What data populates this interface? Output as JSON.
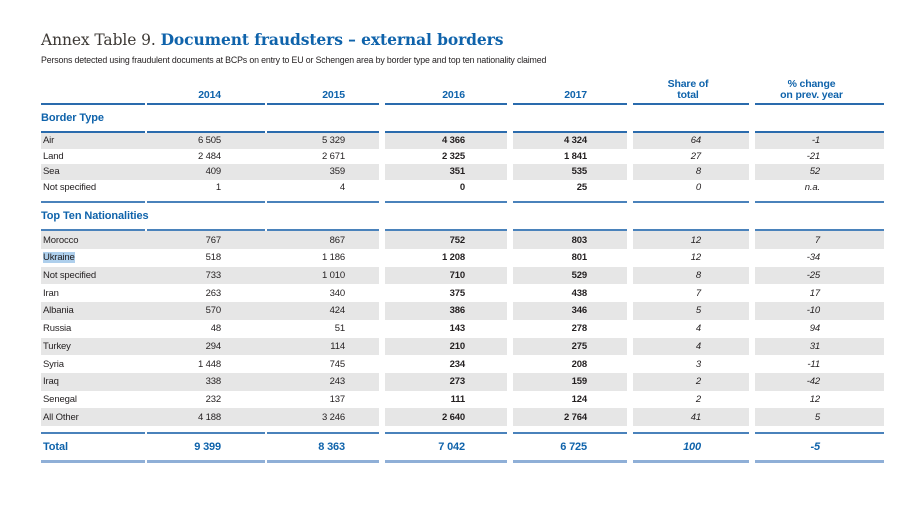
{
  "colors": {
    "blue": "#0f63ab",
    "rule-dark": "#2a6bad",
    "rule-mid": "#4a82bb",
    "rule-light": "#8fafd7",
    "row-gray": "#e6e6e6",
    "selection": "#aecfec",
    "ink": "#231f20"
  },
  "header": {
    "title_prefix": "Annex Table 9.",
    "title": "Document fraudsters – external borders",
    "subtitle": "Persons detected using fraudulent documents at BCPs on entry to EU or Schengen area by border type and top ten nationality claimed"
  },
  "table": {
    "col_headers": {
      "y2014": "2014",
      "y2015": "2015",
      "y2016": "2016",
      "y2017": "2017",
      "share_l1": "Share of",
      "share_l2": "total",
      "change_l1": "% change",
      "change_l2": "on prev. year"
    },
    "sections": [
      {
        "heading": "Border Type",
        "rows": [
          {
            "label": "Air",
            "v2014": "6 505",
            "v2015": "5 329",
            "v2016": "4 366",
            "v2017": "4 324",
            "share": "64",
            "change": "-1"
          },
          {
            "label": "Land",
            "v2014": "2 484",
            "v2015": "2 671",
            "v2016": "2 325",
            "v2017": "1 841",
            "share": "27",
            "change": "-21"
          },
          {
            "label": "Sea",
            "v2014": "409",
            "v2015": "359",
            "v2016": "351",
            "v2017": "535",
            "share": "8",
            "change": "52"
          },
          {
            "label": "Not specified",
            "v2014": "1",
            "v2015": "4",
            "v2016": "0",
            "v2017": "25",
            "share": "0",
            "change": "n.a."
          }
        ]
      },
      {
        "heading": "Top Ten Nationalities",
        "rows": [
          {
            "label": "Morocco",
            "v2014": "767",
            "v2015": "867",
            "v2016": "752",
            "v2017": "803",
            "share": "12",
            "change": "7"
          },
          {
            "label": "Ukraine",
            "highlighted": true,
            "v2014": "518",
            "v2015": "1 186",
            "v2016": "1 208",
            "v2017": "801",
            "share": "12",
            "change": "-34"
          },
          {
            "label": "Not specified",
            "v2014": "733",
            "v2015": "1 010",
            "v2016": "710",
            "v2017": "529",
            "share": "8",
            "change": "-25"
          },
          {
            "label": "Iran",
            "v2014": "263",
            "v2015": "340",
            "v2016": "375",
            "v2017": "438",
            "share": "7",
            "change": "17"
          },
          {
            "label": "Albania",
            "v2014": "570",
            "v2015": "424",
            "v2016": "386",
            "v2017": "346",
            "share": "5",
            "change": "-10"
          },
          {
            "label": "Russia",
            "v2014": "48",
            "v2015": "51",
            "v2016": "143",
            "v2017": "278",
            "share": "4",
            "change": "94"
          },
          {
            "label": "Turkey",
            "v2014": "294",
            "v2015": "114",
            "v2016": "210",
            "v2017": "275",
            "share": "4",
            "change": "31"
          },
          {
            "label": "Syria",
            "v2014": "1 448",
            "v2015": "745",
            "v2016": "234",
            "v2017": "208",
            "share": "3",
            "change": "-11"
          },
          {
            "label": "Iraq",
            "v2014": "338",
            "v2015": "243",
            "v2016": "273",
            "v2017": "159",
            "share": "2",
            "change": "-42"
          },
          {
            "label": "Senegal",
            "v2014": "232",
            "v2015": "137",
            "v2016": "111",
            "v2017": "124",
            "share": "2",
            "change": "12"
          },
          {
            "label": "All Other",
            "v2014": "4 188",
            "v2015": "3 246",
            "v2016": "2 640",
            "v2017": "2 764",
            "share": "41",
            "change": "5"
          }
        ]
      }
    ],
    "total": {
      "label": "Total",
      "v2014": "9 399",
      "v2015": "8 363",
      "v2016": "7 042",
      "v2017": "6 725",
      "share": "100",
      "change": "-5"
    }
  }
}
